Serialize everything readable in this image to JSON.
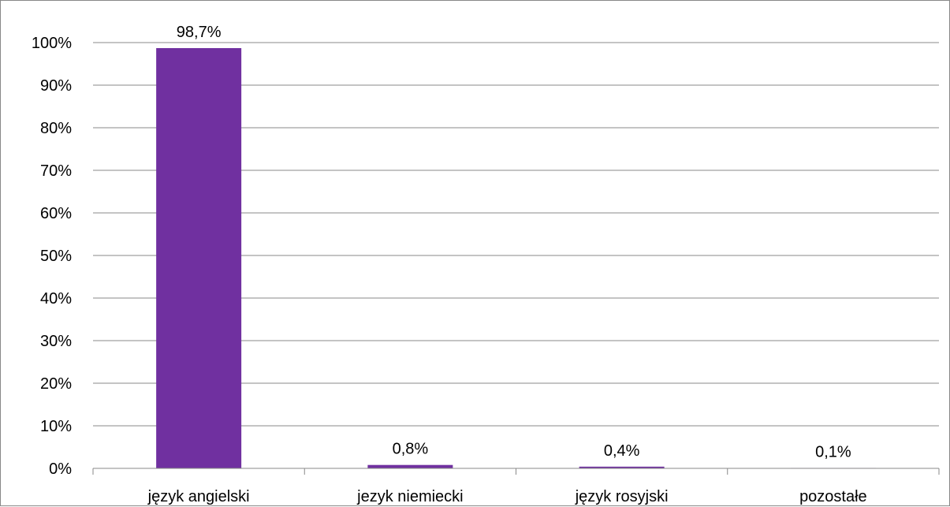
{
  "chart_data": {
    "type": "bar",
    "categories": [
      "język angielski",
      "jezyk niemiecki",
      "język rosyjski",
      "pozostałe"
    ],
    "values": [
      98.7,
      0.8,
      0.4,
      0.1
    ],
    "data_labels": [
      "98,7%",
      "0,8%",
      "0,4%",
      "0,1%"
    ],
    "y_ticks": [
      "0%",
      "10%",
      "20%",
      "30%",
      "40%",
      "50%",
      "60%",
      "70%",
      "80%",
      "90%",
      "100%"
    ],
    "ylim": [
      0,
      100
    ],
    "grid": true,
    "bar_color": "#7030a0",
    "gridline_color": "#898989"
  }
}
